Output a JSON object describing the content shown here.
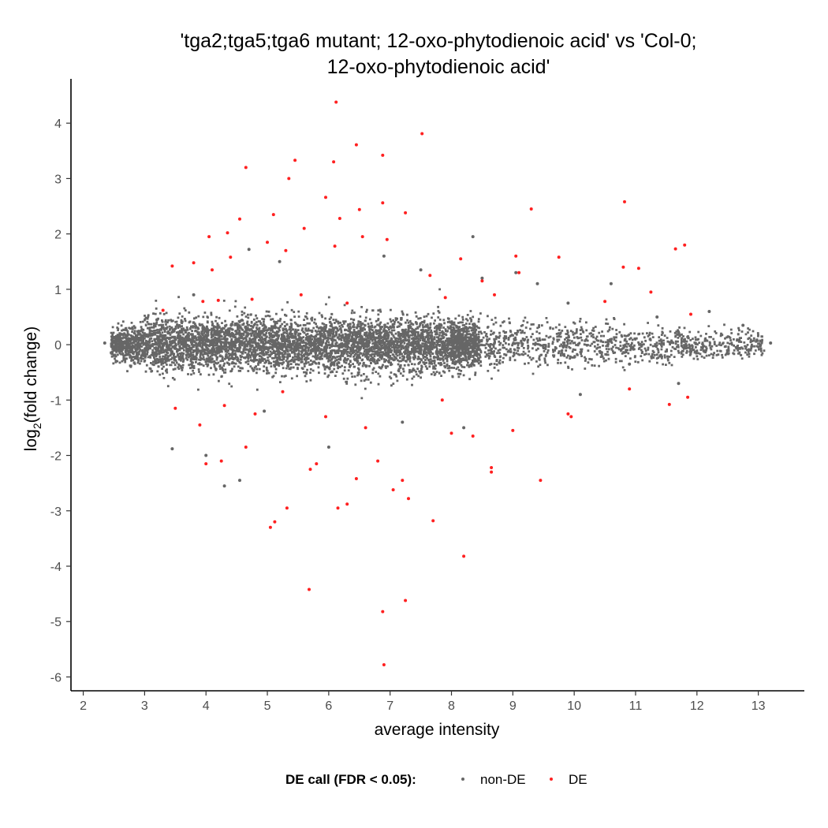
{
  "chart_data": {
    "type": "scatter",
    "title_lines": [
      "'tga2;tga5;tga6 mutant; 12-oxo-phytodienoic acid' vs 'Col-0;",
      "12-oxo-phytodienoic acid'"
    ],
    "xlabel": "average intensity",
    "ylabel_main": "log",
    "ylabel_sub": "2",
    "ylabel_tail": "(fold change)",
    "xlim": [
      1.8,
      13.75
    ],
    "ylim": [
      -6.25,
      4.8
    ],
    "x_ticks": [
      2,
      3,
      4,
      5,
      6,
      7,
      8,
      9,
      10,
      11,
      12,
      13
    ],
    "y_ticks": [
      -6,
      -5,
      -4,
      -3,
      -2,
      -1,
      0,
      1,
      2,
      3,
      4
    ],
    "grid": false,
    "legend": {
      "title": "DE call (FDR < 0.05):",
      "position": "bottom",
      "entries": [
        {
          "label": "non-DE",
          "color": "#666666"
        },
        {
          "label": "DE",
          "color": "#ff2020"
        }
      ]
    },
    "non_de_cloud": {
      "color": "#666666",
      "description_points_generated": true,
      "x_range": [
        2.3,
        13.2
      ],
      "center_band_halfwidth": 0.35
    },
    "series": [
      {
        "name": "non-DE",
        "color": "#666666",
        "points": [
          [
            2.35,
            0.03
          ],
          [
            2.5,
            -0.1
          ],
          [
            2.6,
            0.12
          ],
          [
            3.2,
            0.45
          ],
          [
            3.45,
            -1.88
          ],
          [
            4.3,
            -2.55
          ],
          [
            4.55,
            -2.45
          ],
          [
            4.0,
            -2.0
          ],
          [
            4.95,
            -1.2
          ],
          [
            8.35,
            1.95
          ],
          [
            8.5,
            1.2
          ],
          [
            9.05,
            1.3
          ],
          [
            9.4,
            1.1
          ],
          [
            10.6,
            1.1
          ],
          [
            10.1,
            -0.9
          ],
          [
            11.35,
            0.5
          ],
          [
            11.7,
            -0.7
          ],
          [
            12.2,
            0.6
          ],
          [
            12.75,
            0.35
          ],
          [
            13.2,
            0.03
          ],
          [
            10.9,
            -0.35
          ],
          [
            9.9,
            0.75
          ],
          [
            8.2,
            -1.5
          ],
          [
            7.2,
            -1.4
          ],
          [
            6.0,
            -1.85
          ],
          [
            5.2,
            1.5
          ],
          [
            4.7,
            1.72
          ],
          [
            3.8,
            0.9
          ],
          [
            6.9,
            1.6
          ],
          [
            7.5,
            1.35
          ]
        ]
      },
      {
        "name": "DE",
        "color": "#ff2020",
        "points": [
          [
            6.12,
            4.38
          ],
          [
            7.52,
            3.81
          ],
          [
            6.45,
            3.61
          ],
          [
            6.88,
            3.42
          ],
          [
            5.45,
            3.33
          ],
          [
            4.65,
            3.2
          ],
          [
            6.08,
            3.3
          ],
          [
            5.35,
            3.0
          ],
          [
            5.95,
            2.66
          ],
          [
            10.82,
            2.58
          ],
          [
            6.88,
            2.56
          ],
          [
            6.5,
            2.44
          ],
          [
            7.25,
            2.38
          ],
          [
            9.3,
            2.45
          ],
          [
            5.1,
            2.35
          ],
          [
            4.55,
            2.27
          ],
          [
            6.18,
            2.28
          ],
          [
            5.6,
            2.1
          ],
          [
            4.35,
            2.02
          ],
          [
            4.05,
            1.95
          ],
          [
            6.55,
            1.95
          ],
          [
            6.95,
            1.9
          ],
          [
            5.0,
            1.85
          ],
          [
            5.3,
            1.7
          ],
          [
            6.1,
            1.78
          ],
          [
            11.8,
            1.8
          ],
          [
            11.65,
            1.73
          ],
          [
            9.75,
            1.58
          ],
          [
            9.05,
            1.6
          ],
          [
            8.15,
            1.55
          ],
          [
            3.45,
            1.42
          ],
          [
            3.8,
            1.48
          ],
          [
            4.4,
            1.58
          ],
          [
            10.8,
            1.4
          ],
          [
            11.05,
            1.38
          ],
          [
            4.1,
            1.35
          ],
          [
            7.65,
            1.25
          ],
          [
            8.5,
            1.15
          ],
          [
            9.1,
            1.3
          ],
          [
            7.9,
            0.85
          ],
          [
            3.3,
            0.62
          ],
          [
            3.95,
            0.78
          ],
          [
            4.75,
            0.82
          ],
          [
            5.55,
            0.9
          ],
          [
            6.3,
            0.75
          ],
          [
            11.25,
            0.95
          ],
          [
            10.5,
            0.78
          ],
          [
            11.9,
            0.55
          ],
          [
            4.2,
            0.8
          ],
          [
            8.7,
            0.9
          ],
          [
            3.5,
            -1.15
          ],
          [
            3.9,
            -1.45
          ],
          [
            4.3,
            -1.1
          ],
          [
            4.8,
            -1.25
          ],
          [
            5.25,
            -0.85
          ],
          [
            4.0,
            -2.15
          ],
          [
            4.25,
            -2.1
          ],
          [
            5.7,
            -2.25
          ],
          [
            5.8,
            -2.15
          ],
          [
            4.65,
            -1.85
          ],
          [
            6.45,
            -2.42
          ],
          [
            6.8,
            -2.1
          ],
          [
            7.2,
            -2.45
          ],
          [
            7.05,
            -2.62
          ],
          [
            7.3,
            -2.78
          ],
          [
            6.15,
            -2.95
          ],
          [
            6.3,
            -2.88
          ],
          [
            5.32,
            -2.95
          ],
          [
            5.12,
            -3.2
          ],
          [
            5.05,
            -3.3
          ],
          [
            7.7,
            -3.18
          ],
          [
            8.2,
            -3.82
          ],
          [
            5.68,
            -4.42
          ],
          [
            7.25,
            -4.62
          ],
          [
            6.88,
            -4.82
          ],
          [
            6.9,
            -5.78
          ],
          [
            8.65,
            -2.3
          ],
          [
            8.65,
            -2.22
          ],
          [
            9.45,
            -2.45
          ],
          [
            8.0,
            -1.6
          ],
          [
            9.9,
            -1.25
          ],
          [
            9.95,
            -1.3
          ],
          [
            10.9,
            -0.8
          ],
          [
            11.55,
            -1.08
          ],
          [
            11.85,
            -0.95
          ],
          [
            9.0,
            -1.55
          ],
          [
            8.35,
            -1.65
          ],
          [
            7.85,
            -1.0
          ],
          [
            5.95,
            -1.3
          ],
          [
            6.6,
            -1.5
          ]
        ]
      }
    ]
  }
}
